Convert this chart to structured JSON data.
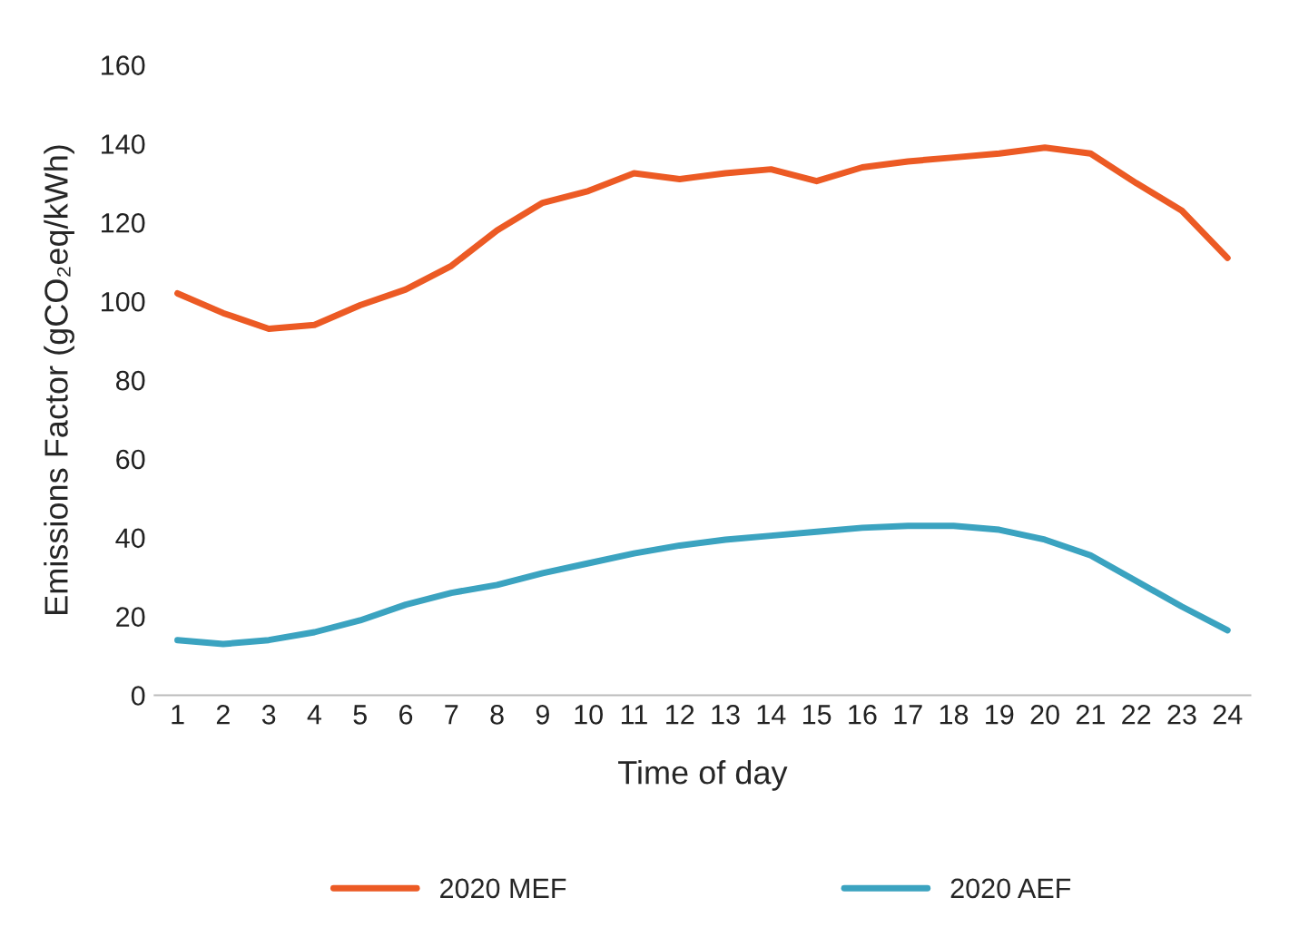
{
  "chart_data": {
    "type": "line",
    "xlabel": "Time of day",
    "ylabel": "Emissions Factor (gCO₂eq/kWh)",
    "categories": [
      "1",
      "2",
      "3",
      "4",
      "5",
      "6",
      "7",
      "8",
      "9",
      "10",
      "11",
      "12",
      "13",
      "14",
      "15",
      "16",
      "17",
      "18",
      "19",
      "20",
      "21",
      "22",
      "23",
      "24"
    ],
    "series": [
      {
        "name": "2020 MEF",
        "color": "#ec5a24",
        "values": [
          102,
          97,
          93,
          94,
          99,
          103,
          109,
          118,
          125,
          128,
          132.5,
          131,
          132.5,
          133.5,
          130.5,
          134,
          135.5,
          136.5,
          137.5,
          139,
          137.5,
          130,
          123,
          111
        ]
      },
      {
        "name": "2020 AEF",
        "color": "#3ba3c0",
        "values": [
          14,
          13,
          14,
          16,
          19,
          23,
          26,
          28,
          31,
          33.5,
          36,
          38,
          39.5,
          40.5,
          41.5,
          42.5,
          43,
          43,
          42,
          39.5,
          35.5,
          29,
          22.5,
          16.5
        ]
      }
    ],
    "ylim": [
      0,
      160
    ],
    "yticks": [
      0,
      20,
      40,
      60,
      80,
      100,
      120,
      140,
      160
    ],
    "grid": false,
    "legend": "bottom",
    "marker": "none",
    "line_style": "solid"
  }
}
